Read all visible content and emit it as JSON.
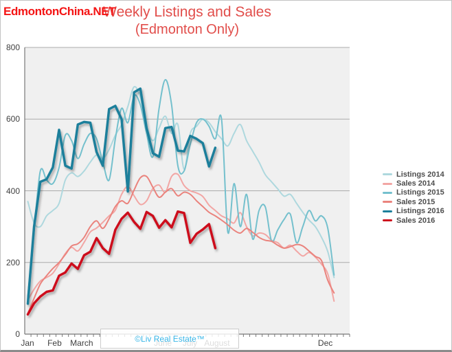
{
  "watermarks": {
    "top": "EdmontonChina.NET",
    "box": "©Liv Real Estate™"
  },
  "title": {
    "line1": "Weekly Listings and Sales",
    "line2": "(Edmonton Only)"
  },
  "colors": {
    "title_red": "#e14d4a",
    "watermark_red": "#f41414",
    "watermark_blue": "#38b6e8",
    "plot_background": "#f0f0f0",
    "gridline": "#ababab",
    "axis": "#777777",
    "axis_text": "#3f3f3f",
    "legend_text": "#4d4d4d"
  },
  "chart_data": {
    "type": "line",
    "title": "Weekly Listings and Sales (Edmonton Only)",
    "x_unit": "week of year",
    "weeks_per_year": 52,
    "ylim": [
      0,
      800
    ],
    "y_ticks": [
      0,
      200,
      400,
      600,
      800
    ],
    "grid": true,
    "legend_position": "right",
    "x_month_labels": [
      {
        "label": "Jan",
        "month_index": 0
      },
      {
        "label": "Feb",
        "month_index": 1
      },
      {
        "label": "March",
        "month_index": 2
      },
      {
        "label": "June",
        "month_index": 5
      },
      {
        "label": "July",
        "month_index": 6
      },
      {
        "label": "August",
        "month_index": 7
      },
      {
        "label": "Dec",
        "month_index": 11
      }
    ],
    "series": [
      {
        "name": "Listings 2014",
        "color": "#aed8de",
        "width": 2,
        "smooth": true,
        "shadow": false,
        "values": [
          370,
          310,
          300,
          330,
          345,
          365,
          430,
          450,
          440,
          455,
          480,
          500,
          490,
          515,
          555,
          585,
          635,
          690,
          660,
          580,
          540,
          575,
          608,
          560,
          585,
          460,
          560,
          580,
          600,
          590,
          565,
          545,
          525,
          560,
          585,
          540,
          510,
          480,
          445,
          425,
          405,
          385,
          390,
          365,
          340,
          318,
          300,
          270,
          230,
          158
        ]
      },
      {
        "name": "Sales 2014",
        "color": "#f2a6a4",
        "width": 2,
        "smooth": true,
        "shadow": false,
        "values": [
          95,
          125,
          148,
          158,
          170,
          196,
          225,
          242,
          232,
          256,
          285,
          296,
          312,
          330,
          346,
          390,
          412,
          386,
          362,
          372,
          406,
          416,
          396,
          440,
          446,
          415,
          400,
          394,
          384,
          360,
          345,
          330,
          322,
          310,
          339,
          300,
          274,
          282,
          278,
          262,
          255,
          240,
          248,
          232,
          218,
          228,
          215,
          195,
          168,
          92
        ]
      },
      {
        "name": "Listings 2015",
        "color": "#74c0cd",
        "width": 2,
        "smooth": true,
        "shadow": false,
        "values": [
          105,
          290,
          455,
          430,
          420,
          465,
          555,
          540,
          490,
          530,
          560,
          545,
          480,
          430,
          545,
          630,
          590,
          665,
          640,
          560,
          495,
          630,
          710,
          640,
          470,
          455,
          530,
          590,
          600,
          580,
          545,
          600,
          285,
          420,
          300,
          390,
          265,
          345,
          355,
          260,
          291,
          320,
          335,
          255,
          300,
          345,
          316,
          330,
          295,
          165
        ]
      },
      {
        "name": "Sales 2015",
        "color": "#ea837d",
        "width": 2,
        "smooth": true,
        "shadow": false,
        "values": [
          58,
          100,
          140,
          163,
          183,
          200,
          222,
          246,
          252,
          270,
          300,
          316,
          295,
          322,
          356,
          372,
          365,
          402,
          436,
          440,
          410,
          382,
          396,
          406,
          386,
          396,
          390,
          372,
          356,
          340,
          330,
          318,
          305,
          290,
          282,
          295,
          284,
          270,
          262,
          259,
          248,
          240,
          244,
          250,
          246,
          232,
          217,
          205,
          150,
          115
        ]
      },
      {
        "name": "Listings 2016",
        "color": "#1d7f9b",
        "width": 3.5,
        "smooth": false,
        "shadow": true,
        "values": [
          85,
          300,
          425,
          432,
          465,
          570,
          470,
          462,
          585,
          592,
          590,
          508,
          470,
          628,
          637,
          600,
          398,
          675,
          685,
          575,
          505,
          495,
          575,
          578,
          512,
          510,
          553,
          545,
          533,
          468,
          520
        ]
      },
      {
        "name": "Sales 2016",
        "color": "#cd111e",
        "width": 3.5,
        "smooth": false,
        "shadow": true,
        "values": [
          55,
          86,
          105,
          118,
          122,
          163,
          172,
          197,
          182,
          220,
          230,
          268,
          240,
          224,
          291,
          322,
          339,
          313,
          294,
          341,
          330,
          297,
          318,
          298,
          342,
          338,
          255,
          280,
          292,
          307,
          240
        ]
      }
    ]
  }
}
